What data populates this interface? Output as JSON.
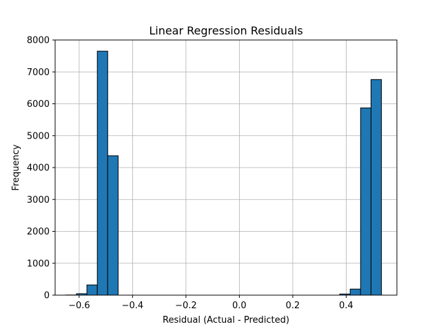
{
  "chart_data": {
    "type": "bar",
    "title": "Linear Regression Residuals",
    "xlabel": "Residual (Actual - Predicted)",
    "ylabel": "Frequency",
    "xlim": [
      -0.69,
      0.59
    ],
    "ylim": [
      0,
      8000
    ],
    "x_ticks": [
      -0.6,
      -0.4,
      -0.2,
      0.0,
      0.2,
      0.4
    ],
    "x_tick_labels": [
      "−0.6",
      "−0.4",
      "−0.2",
      "0.0",
      "0.2",
      "0.4"
    ],
    "y_ticks": [
      0,
      1000,
      2000,
      3000,
      4000,
      5000,
      6000,
      7000,
      8000
    ],
    "y_tick_labels": [
      "0",
      "1000",
      "2000",
      "3000",
      "4000",
      "5000",
      "6000",
      "7000",
      "8000"
    ],
    "grid": true,
    "bar_color": "#1f77b4",
    "bins": [
      {
        "x0": -0.649,
        "x1": -0.61,
        "value": 5
      },
      {
        "x0": -0.61,
        "x1": -0.571,
        "value": 45
      },
      {
        "x0": -0.571,
        "x1": -0.532,
        "value": 320
      },
      {
        "x0": -0.532,
        "x1": -0.493,
        "value": 7650
      },
      {
        "x0": -0.493,
        "x1": -0.454,
        "value": 4370
      },
      {
        "x0": 0.376,
        "x1": 0.415,
        "value": 35
      },
      {
        "x0": 0.415,
        "x1": 0.454,
        "value": 190
      },
      {
        "x0": 0.454,
        "x1": 0.493,
        "value": 5870
      },
      {
        "x0": 0.493,
        "x1": 0.532,
        "value": 6760
      }
    ]
  }
}
